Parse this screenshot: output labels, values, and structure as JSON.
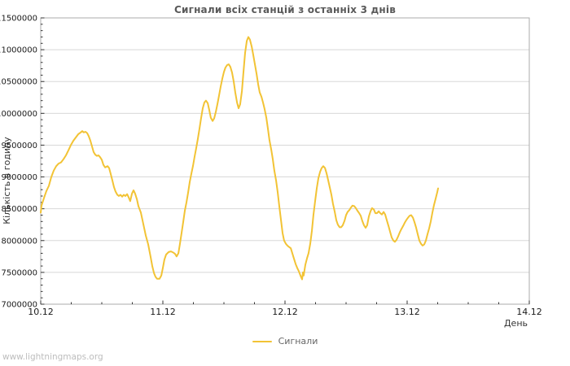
{
  "watermark": "www.lightningmaps.org",
  "chart_data": {
    "type": "line",
    "title": "Сигнали всіх станцій з останніх 3 днів",
    "xlabel": "День",
    "ylabel": "Кількість в годину",
    "legend_position": "bottom-center",
    "grid": "horizontal",
    "x_tick_labels": [
      "10.12",
      "11.12",
      "12.12",
      "13.12",
      "14.12"
    ],
    "x_range_days": [
      0,
      4
    ],
    "x_minor_ticks_per_day": 4,
    "ylim": [
      7000000,
      11500000
    ],
    "y_tick_labels": [
      "7000000",
      "7500000",
      "8000000",
      "8500000",
      "9000000",
      "9500000",
      "10000000",
      "10500000",
      "11000000",
      "11500000"
    ],
    "y_tick_step": 500000,
    "y_minor_step": 100000,
    "colors": {
      "line": "#f2c335",
      "grid": "#d8d8d8",
      "frame": "#ababab",
      "tick": "#333333",
      "tick_label": "#1a1a1a"
    },
    "series": [
      {
        "name": "Сигнали",
        "color": "#f2c335",
        "points": [
          [
            0.0,
            8440000
          ],
          [
            0.007,
            8550000
          ],
          [
            0.027,
            8670000
          ],
          [
            0.047,
            8780000
          ],
          [
            0.067,
            8860000
          ],
          [
            0.087,
            9000000
          ],
          [
            0.107,
            9100000
          ],
          [
            0.127,
            9170000
          ],
          [
            0.147,
            9210000
          ],
          [
            0.167,
            9230000
          ],
          [
            0.187,
            9280000
          ],
          [
            0.207,
            9340000
          ],
          [
            0.227,
            9420000
          ],
          [
            0.247,
            9500000
          ],
          [
            0.267,
            9570000
          ],
          [
            0.287,
            9620000
          ],
          [
            0.307,
            9670000
          ],
          [
            0.327,
            9700000
          ],
          [
            0.34,
            9720000
          ],
          [
            0.353,
            9700000
          ],
          [
            0.367,
            9710000
          ],
          [
            0.38,
            9690000
          ],
          [
            0.393,
            9640000
          ],
          [
            0.407,
            9570000
          ],
          [
            0.42,
            9480000
          ],
          [
            0.433,
            9390000
          ],
          [
            0.447,
            9350000
          ],
          [
            0.46,
            9330000
          ],
          [
            0.473,
            9340000
          ],
          [
            0.487,
            9310000
          ],
          [
            0.5,
            9270000
          ],
          [
            0.513,
            9190000
          ],
          [
            0.527,
            9150000
          ],
          [
            0.547,
            9170000
          ],
          [
            0.56,
            9140000
          ],
          [
            0.573,
            9050000
          ],
          [
            0.587,
            8940000
          ],
          [
            0.6,
            8840000
          ],
          [
            0.613,
            8770000
          ],
          [
            0.627,
            8720000
          ],
          [
            0.64,
            8700000
          ],
          [
            0.653,
            8720000
          ],
          [
            0.667,
            8690000
          ],
          [
            0.68,
            8720000
          ],
          [
            0.693,
            8700000
          ],
          [
            0.707,
            8730000
          ],
          [
            0.72,
            8680000
          ],
          [
            0.733,
            8620000
          ],
          [
            0.747,
            8740000
          ],
          [
            0.76,
            8790000
          ],
          [
            0.773,
            8740000
          ],
          [
            0.787,
            8650000
          ],
          [
            0.8,
            8540000
          ],
          [
            0.82,
            8440000
          ],
          [
            0.84,
            8260000
          ],
          [
            0.86,
            8080000
          ],
          [
            0.88,
            7940000
          ],
          [
            0.9,
            7740000
          ],
          [
            0.913,
            7600000
          ],
          [
            0.927,
            7490000
          ],
          [
            0.94,
            7430000
          ],
          [
            0.953,
            7400000
          ],
          [
            0.973,
            7400000
          ],
          [
            0.987,
            7450000
          ],
          [
            1.0,
            7570000
          ],
          [
            1.013,
            7700000
          ],
          [
            1.027,
            7780000
          ],
          [
            1.047,
            7820000
          ],
          [
            1.067,
            7830000
          ],
          [
            1.087,
            7810000
          ],
          [
            1.1,
            7790000
          ],
          [
            1.113,
            7750000
          ],
          [
            1.127,
            7800000
          ],
          [
            1.14,
            7950000
          ],
          [
            1.153,
            8120000
          ],
          [
            1.167,
            8300000
          ],
          [
            1.18,
            8470000
          ],
          [
            1.193,
            8600000
          ],
          [
            1.207,
            8760000
          ],
          [
            1.22,
            8920000
          ],
          [
            1.233,
            9050000
          ],
          [
            1.247,
            9180000
          ],
          [
            1.26,
            9320000
          ],
          [
            1.273,
            9450000
          ],
          [
            1.287,
            9600000
          ],
          [
            1.3,
            9760000
          ],
          [
            1.313,
            9920000
          ],
          [
            1.327,
            10080000
          ],
          [
            1.34,
            10170000
          ],
          [
            1.353,
            10200000
          ],
          [
            1.367,
            10160000
          ],
          [
            1.38,
            10050000
          ],
          [
            1.393,
            9930000
          ],
          [
            1.407,
            9880000
          ],
          [
            1.42,
            9920000
          ],
          [
            1.433,
            10020000
          ],
          [
            1.447,
            10150000
          ],
          [
            1.46,
            10280000
          ],
          [
            1.473,
            10420000
          ],
          [
            1.487,
            10550000
          ],
          [
            1.5,
            10650000
          ],
          [
            1.513,
            10720000
          ],
          [
            1.527,
            10760000
          ],
          [
            1.54,
            10770000
          ],
          [
            1.553,
            10730000
          ],
          [
            1.567,
            10640000
          ],
          [
            1.58,
            10500000
          ],
          [
            1.593,
            10330000
          ],
          [
            1.607,
            10170000
          ],
          [
            1.62,
            10080000
          ],
          [
            1.633,
            10140000
          ],
          [
            1.647,
            10350000
          ],
          [
            1.66,
            10650000
          ],
          [
            1.673,
            10950000
          ],
          [
            1.687,
            11140000
          ],
          [
            1.7,
            11200000
          ],
          [
            1.713,
            11160000
          ],
          [
            1.727,
            11050000
          ],
          [
            1.74,
            10920000
          ],
          [
            1.753,
            10780000
          ],
          [
            1.767,
            10620000
          ],
          [
            1.78,
            10460000
          ],
          [
            1.793,
            10330000
          ],
          [
            1.807,
            10260000
          ],
          [
            1.82,
            10170000
          ],
          [
            1.833,
            10070000
          ],
          [
            1.847,
            9930000
          ],
          [
            1.86,
            9760000
          ],
          [
            1.873,
            9580000
          ],
          [
            1.887,
            9430000
          ],
          [
            1.9,
            9280000
          ],
          [
            1.913,
            9100000
          ],
          [
            1.927,
            8940000
          ],
          [
            1.94,
            8760000
          ],
          [
            1.953,
            8550000
          ],
          [
            1.967,
            8320000
          ],
          [
            1.98,
            8120000
          ],
          [
            1.993,
            8000000
          ],
          [
            2.007,
            7950000
          ],
          [
            2.02,
            7920000
          ],
          [
            2.033,
            7900000
          ],
          [
            2.047,
            7880000
          ],
          [
            2.06,
            7800000
          ],
          [
            2.073,
            7720000
          ],
          [
            2.087,
            7630000
          ],
          [
            2.1,
            7570000
          ],
          [
            2.113,
            7520000
          ],
          [
            2.127,
            7450000
          ],
          [
            2.14,
            7390000
          ],
          [
            2.147,
            7500000
          ],
          [
            2.153,
            7450000
          ],
          [
            2.167,
            7620000
          ],
          [
            2.18,
            7720000
          ],
          [
            2.193,
            7800000
          ],
          [
            2.207,
            7950000
          ],
          [
            2.22,
            8150000
          ],
          [
            2.233,
            8400000
          ],
          [
            2.247,
            8620000
          ],
          [
            2.26,
            8820000
          ],
          [
            2.273,
            8980000
          ],
          [
            2.287,
            9080000
          ],
          [
            2.3,
            9140000
          ],
          [
            2.313,
            9170000
          ],
          [
            2.327,
            9140000
          ],
          [
            2.34,
            9060000
          ],
          [
            2.353,
            8950000
          ],
          [
            2.367,
            8830000
          ],
          [
            2.38,
            8720000
          ],
          [
            2.393,
            8580000
          ],
          [
            2.407,
            8450000
          ],
          [
            2.42,
            8320000
          ],
          [
            2.433,
            8250000
          ],
          [
            2.447,
            8210000
          ],
          [
            2.46,
            8210000
          ],
          [
            2.473,
            8240000
          ],
          [
            2.487,
            8310000
          ],
          [
            2.5,
            8400000
          ],
          [
            2.513,
            8450000
          ],
          [
            2.527,
            8480000
          ],
          [
            2.54,
            8520000
          ],
          [
            2.553,
            8550000
          ],
          [
            2.567,
            8540000
          ],
          [
            2.58,
            8510000
          ],
          [
            2.593,
            8470000
          ],
          [
            2.607,
            8430000
          ],
          [
            2.62,
            8390000
          ],
          [
            2.633,
            8310000
          ],
          [
            2.647,
            8240000
          ],
          [
            2.66,
            8200000
          ],
          [
            2.673,
            8240000
          ],
          [
            2.687,
            8380000
          ],
          [
            2.7,
            8460000
          ],
          [
            2.713,
            8510000
          ],
          [
            2.727,
            8490000
          ],
          [
            2.74,
            8430000
          ],
          [
            2.753,
            8430000
          ],
          [
            2.767,
            8460000
          ],
          [
            2.78,
            8430000
          ],
          [
            2.793,
            8410000
          ],
          [
            2.807,
            8450000
          ],
          [
            2.82,
            8410000
          ],
          [
            2.833,
            8320000
          ],
          [
            2.847,
            8230000
          ],
          [
            2.86,
            8140000
          ],
          [
            2.873,
            8050000
          ],
          [
            2.887,
            8000000
          ],
          [
            2.9,
            7980000
          ],
          [
            2.913,
            8010000
          ],
          [
            2.927,
            8070000
          ],
          [
            2.94,
            8130000
          ],
          [
            2.953,
            8180000
          ],
          [
            2.967,
            8230000
          ],
          [
            2.98,
            8280000
          ],
          [
            2.993,
            8320000
          ],
          [
            3.007,
            8360000
          ],
          [
            3.02,
            8390000
          ],
          [
            3.033,
            8400000
          ],
          [
            3.047,
            8360000
          ],
          [
            3.06,
            8290000
          ],
          [
            3.073,
            8210000
          ],
          [
            3.087,
            8100000
          ],
          [
            3.1,
            8000000
          ],
          [
            3.113,
            7950000
          ],
          [
            3.127,
            7920000
          ],
          [
            3.14,
            7940000
          ],
          [
            3.153,
            8000000
          ],
          [
            3.167,
            8100000
          ],
          [
            3.18,
            8190000
          ],
          [
            3.193,
            8300000
          ],
          [
            3.207,
            8440000
          ],
          [
            3.22,
            8560000
          ],
          [
            3.233,
            8660000
          ],
          [
            3.247,
            8760000
          ],
          [
            3.253,
            8820000
          ]
        ]
      }
    ]
  }
}
